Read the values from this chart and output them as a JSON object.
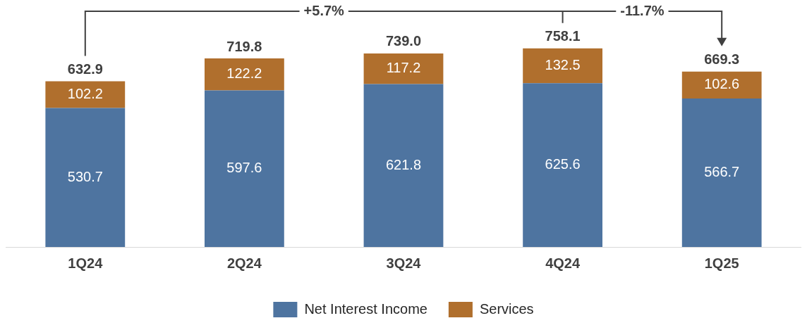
{
  "chart_data": {
    "type": "bar",
    "stacked": true,
    "categories": [
      "1Q24",
      "2Q24",
      "3Q24",
      "4Q24",
      "1Q25"
    ],
    "series": [
      {
        "name": "Net Interest Income",
        "color": "#4e74a0",
        "values": [
          530.7,
          597.6,
          621.8,
          625.6,
          566.7
        ]
      },
      {
        "name": "Services",
        "color": "#b06f2d",
        "values": [
          102.2,
          122.2,
          117.2,
          132.5,
          102.6
        ]
      }
    ],
    "totals": [
      "632.9",
      "719.8",
      "739.0",
      "758.1",
      "669.3"
    ],
    "data_labels": true,
    "grid": false,
    "legend": "bottom",
    "annotations": [
      "+5.7%",
      "-11.7%"
    ]
  }
}
